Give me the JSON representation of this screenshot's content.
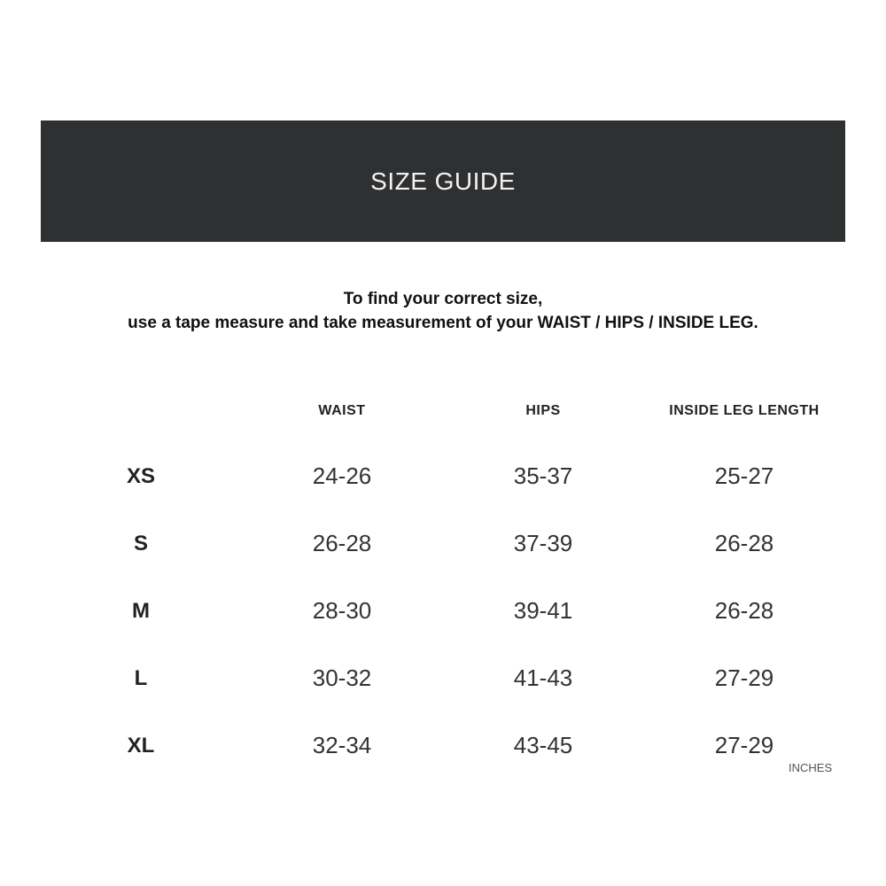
{
  "banner": {
    "title": "SIZE GUIDE",
    "background_color": "#2f3031"
  },
  "intro": {
    "line1": "To find your correct size,",
    "line2": "use a tape measure and take measurement of your WAIST / HIPS / INSIDE LEG."
  },
  "table": {
    "headers": [
      "",
      "WAIST",
      "HIPS",
      "INSIDE LEG LENGTH"
    ],
    "rows": [
      {
        "size": "XS",
        "waist": "24-26",
        "hips": "35-37",
        "leg": "25-27"
      },
      {
        "size": "S",
        "waist": "26-28",
        "hips": "37-39",
        "leg": "26-28"
      },
      {
        "size": "M",
        "waist": "28-30",
        "hips": "39-41",
        "leg": "26-28"
      },
      {
        "size": "L",
        "waist": "30-32",
        "hips": "41-43",
        "leg": "27-29"
      },
      {
        "size": "XL",
        "waist": "32-34",
        "hips": "43-45",
        "leg": "27-29"
      }
    ],
    "unit": "INCHES"
  }
}
